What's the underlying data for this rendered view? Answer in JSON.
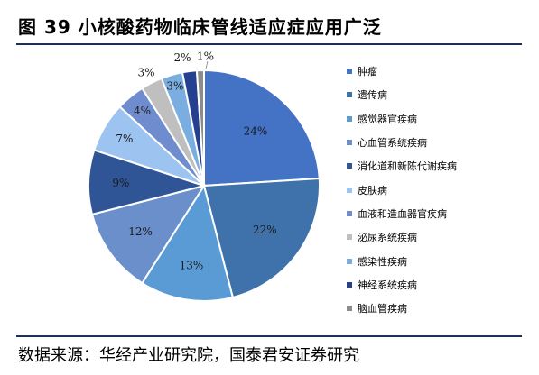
{
  "title": "图 39 小核酸药物临床管线适应症应用广泛",
  "source": "数据来源：华经产业研究院，国泰君安证券研究",
  "chart_data": {
    "type": "pie",
    "title": "",
    "legend_position": "right",
    "series": [
      {
        "label": "肿瘤",
        "value": 24,
        "color": "#4472c4",
        "display": "24%"
      },
      {
        "label": "遗传病",
        "value": 22,
        "color": "#3f72ab",
        "display": "22%"
      },
      {
        "label": "感觉器官疾病",
        "value": 13,
        "color": "#5b9bd5",
        "display": "13%"
      },
      {
        "label": "心血管系统疾病",
        "value": 12,
        "color": "#6a8fcb",
        "display": "12%"
      },
      {
        "label": "消化道和新陈代谢疾病",
        "value": 9,
        "color": "#2f5597",
        "display": "9%"
      },
      {
        "label": "皮肤病",
        "value": 7,
        "color": "#9dc3f0",
        "display": "7%"
      },
      {
        "label": "血液和造血器官疾病",
        "value": 4,
        "color": "#6f8ccf",
        "display": "4%"
      },
      {
        "label": "泌尿系统疾病",
        "value": 3,
        "color": "#bfbfbf",
        "display": "3%"
      },
      {
        "label": "感染性疾病",
        "value": 3,
        "color": "#7aaee0",
        "display": "3%"
      },
      {
        "label": "神经系统疾病",
        "value": 2,
        "color": "#24408e",
        "display": "2%"
      },
      {
        "label": "脑血管疾病",
        "value": 1,
        "color": "#8c8c8c",
        "display": "1%"
      }
    ]
  }
}
